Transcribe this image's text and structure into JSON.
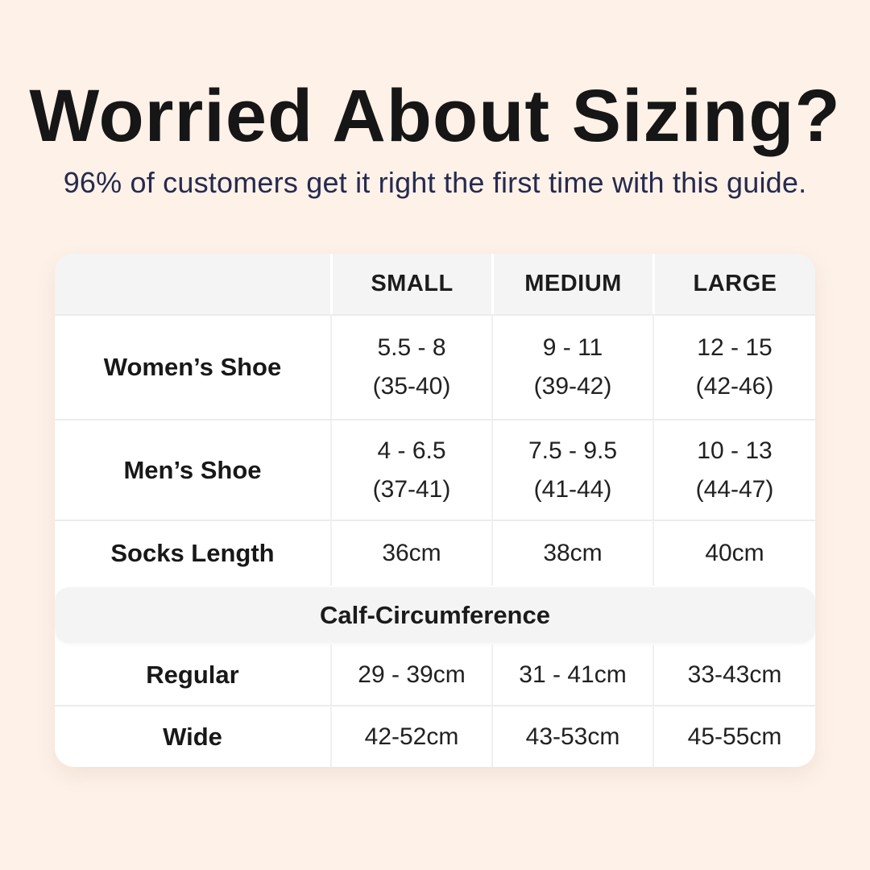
{
  "page": {
    "background_color": "#fdf1e8",
    "card_color": "#ffffff",
    "header_band_color": "#f4f4f4",
    "title_color": "#161616",
    "subtitle_color": "#262a4d"
  },
  "header": {
    "title": "Worried About Sizing?",
    "subtitle": "96% of customers get it right the first time with this guide."
  },
  "table": {
    "columns": [
      "",
      "SMALL",
      "MEDIUM",
      "LARGE"
    ],
    "rows": [
      {
        "label": "Women’s Shoe",
        "values": [
          [
            "5.5 - 8",
            "(35-40)"
          ],
          [
            "9 - 11",
            "(39-42)"
          ],
          [
            "12 - 15",
            "(42-46)"
          ]
        ]
      },
      {
        "label": "Men’s Shoe",
        "values": [
          [
            "4 - 6.5",
            "(37-41)"
          ],
          [
            "7.5 - 9.5",
            "(41-44)"
          ],
          [
            "10 - 13",
            "(44-47)"
          ]
        ]
      },
      {
        "label": "Socks Length",
        "values": [
          "36cm",
          "38cm",
          "40cm"
        ]
      }
    ],
    "section_header": "Calf-Circumference",
    "section_rows": [
      {
        "label": "Regular",
        "values": [
          "29 - 39cm",
          "31 - 41cm",
          "33-43cm"
        ]
      },
      {
        "label": "Wide",
        "values": [
          "42-52cm",
          "43-53cm",
          "45-55cm"
        ]
      }
    ]
  }
}
